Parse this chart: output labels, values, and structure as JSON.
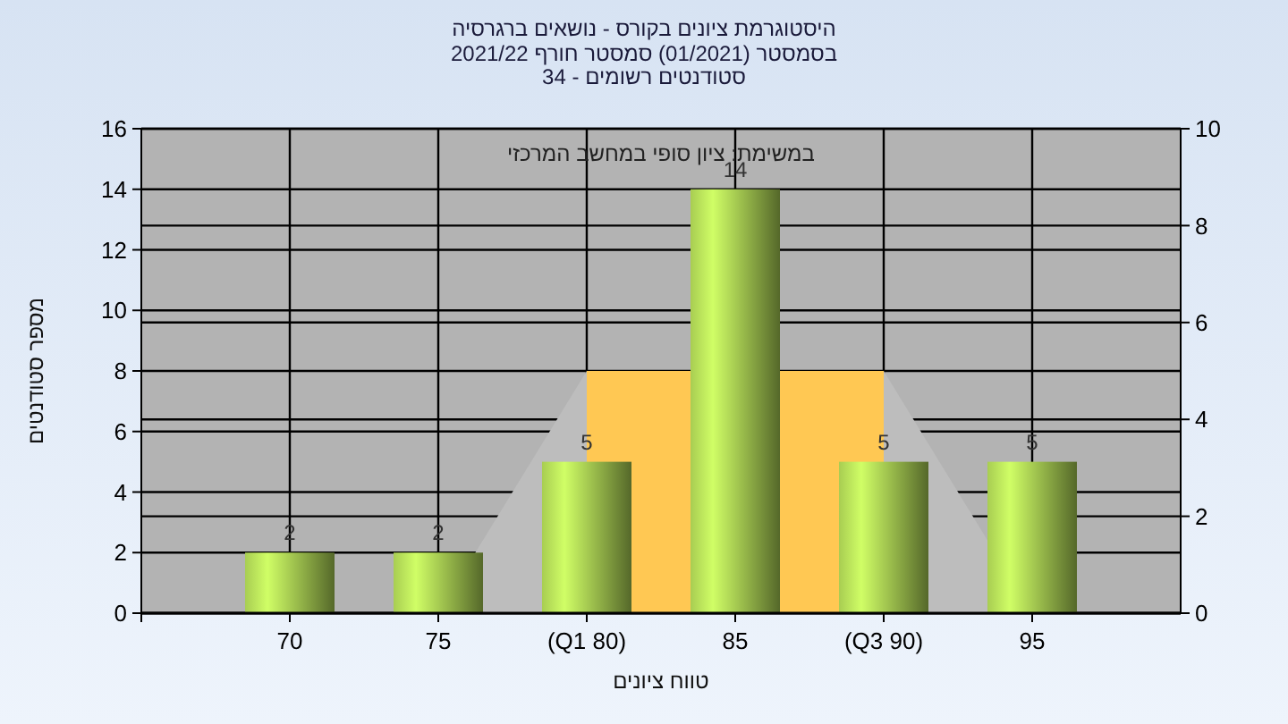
{
  "chart_data": {
    "type": "bar",
    "title": "היסטוגרמת ציונים בקורס - נושאים ברגרסיה",
    "subtitle": "בסמסטר  (01/2021)  סמסטר חורף 2021/22\nסטודנטים רשומים - 34",
    "annotations": [
      "במשימת: ציון סופי במחשב המרכזי"
    ],
    "xlabel": "טווח ציונים",
    "ylabel": "מספר סטודנטים",
    "categories": [
      "70",
      "75",
      "(Q1 80)",
      "85",
      "(Q3 90)",
      "95"
    ],
    "series": [
      {
        "type": "area",
        "axis": "y2",
        "color": "#bdbdbd",
        "values": [
          0,
          0,
          5,
          null,
          5,
          0
        ]
      },
      {
        "type": "area",
        "axis": "y2",
        "color": "#ffc853",
        "values": [
          null,
          null,
          5,
          null,
          5,
          null
        ]
      },
      {
        "color": "#97b84a",
        "values": [
          2,
          2,
          5,
          14,
          5,
          5
        ],
        "value_labels": [
          "2",
          "2",
          "5",
          "14",
          "5",
          "5"
        ]
      }
    ],
    "ylim": [
      0,
      16
    ],
    "yticks": [
      0,
      2,
      4,
      6,
      8,
      10,
      12,
      14,
      16
    ],
    "y2lim": [
      0,
      10
    ],
    "y2ticks": [
      0,
      2,
      4,
      6,
      8,
      10
    ],
    "grid": true
  }
}
